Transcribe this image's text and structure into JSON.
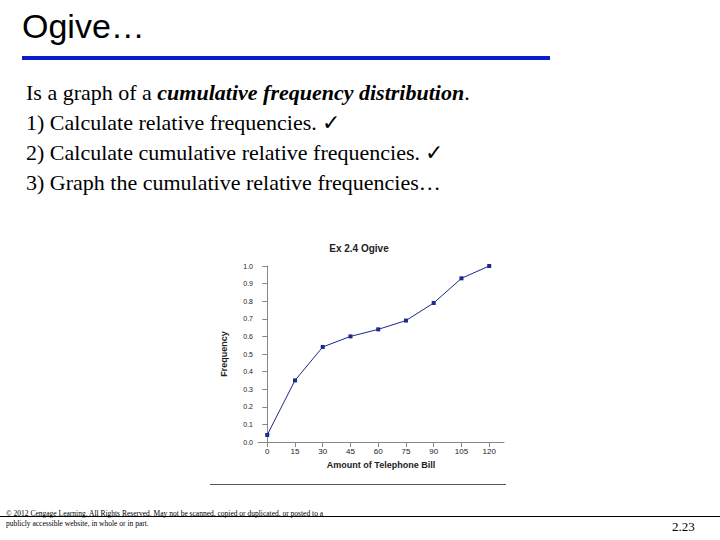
{
  "header": {
    "title": "Ogive…"
  },
  "body": {
    "lines": [
      {
        "segments": [
          {
            "text": "Is a graph of a ",
            "style": "normal"
          },
          {
            "text": "cumulative frequency distribution",
            "style": "bold-italic"
          },
          {
            "text": ".",
            "style": "normal"
          }
        ]
      },
      {
        "segments": [
          {
            "text": "1) Calculate relative frequencies. ✓",
            "style": "normal"
          }
        ]
      },
      {
        "segments": [
          {
            "text": "2) Calculate cumulative relative frequencies. ✓",
            "style": "normal"
          }
        ]
      },
      {
        "segments": [
          {
            "text": "3) Graph the cumulative relative frequencies…",
            "style": "normal"
          }
        ]
      }
    ]
  },
  "chart_data": {
    "type": "line",
    "title": "Ex 2.4 Ogive",
    "x_label": "Amount of Telephone Bill",
    "y_label": "Frequency",
    "x": [
      0,
      15,
      30,
      45,
      60,
      75,
      90,
      105,
      120
    ],
    "values": [
      0.04,
      0.35,
      0.54,
      0.6,
      0.64,
      0.69,
      0.79,
      0.93,
      1.0
    ],
    "color": "#1c2a8a",
    "marker": "square",
    "line_style": "solid",
    "xlim": [
      -5,
      128
    ],
    "xticks": [
      0,
      15,
      30,
      45,
      60,
      75,
      90,
      105,
      120
    ],
    "ylim": [
      0,
      1
    ],
    "yticks": [
      {
        "value": 0,
        "label": "0.0"
      },
      0.1,
      0.2,
      0.3,
      0.4,
      0.5,
      0.6,
      0.7,
      0.8,
      0.9,
      {
        "value": 1,
        "label": "1.0"
      }
    ],
    "grid": false
  },
  "footer": {
    "copyright": "© 2012 Cengage Learning. All Rights Reserved. May not be scanned, copied or duplicated, or posted to a publicly accessible website, in whole or in part.",
    "page": "2.23"
  }
}
